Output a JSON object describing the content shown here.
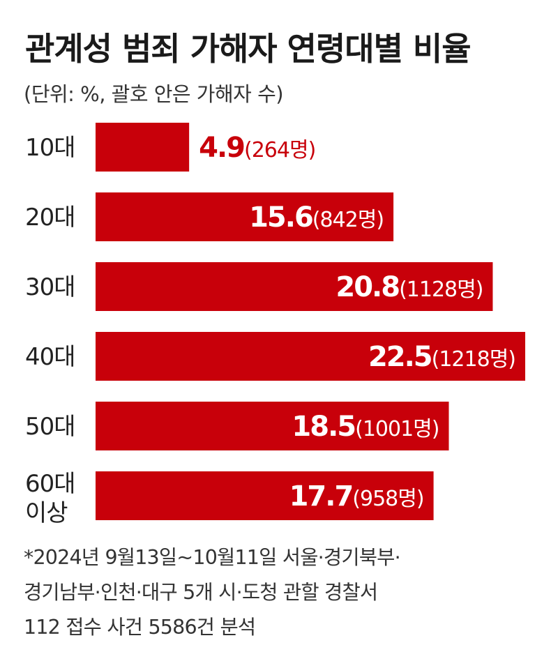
{
  "title": "관계성 범죄 가해자 연령대별 비율",
  "subtitle": "(단위: %, 괄호 안은 가해자 수)",
  "chart_data": {
    "type": "bar",
    "orientation": "horizontal",
    "categories": [
      "10대",
      "20대",
      "30대",
      "40대",
      "50대",
      "60대 이상"
    ],
    "values": [
      4.9,
      15.6,
      20.8,
      22.5,
      18.5,
      17.7
    ],
    "counts": [
      "(264명)",
      "(842명)",
      "(1128명)",
      "(1218명)",
      "(1001명)",
      "(958명)"
    ],
    "value_labels": [
      "4.9",
      "15.6",
      "20.8",
      "22.5",
      "18.5",
      "17.7"
    ],
    "unit": "%",
    "xlim": [
      0,
      22.5
    ],
    "grid": false,
    "legend": "none",
    "bar_color": "#c8000a",
    "label_color_outside": "#c8000a",
    "label_color_inside": "#ffffff"
  },
  "footnote": [
    "*2024년 9월13일~10월11일 서울·경기북부·",
    " 경기남부·인천·대구 5개 시·도청 관할 경찰서",
    " 112 접수 사건 5586건 분석"
  ]
}
